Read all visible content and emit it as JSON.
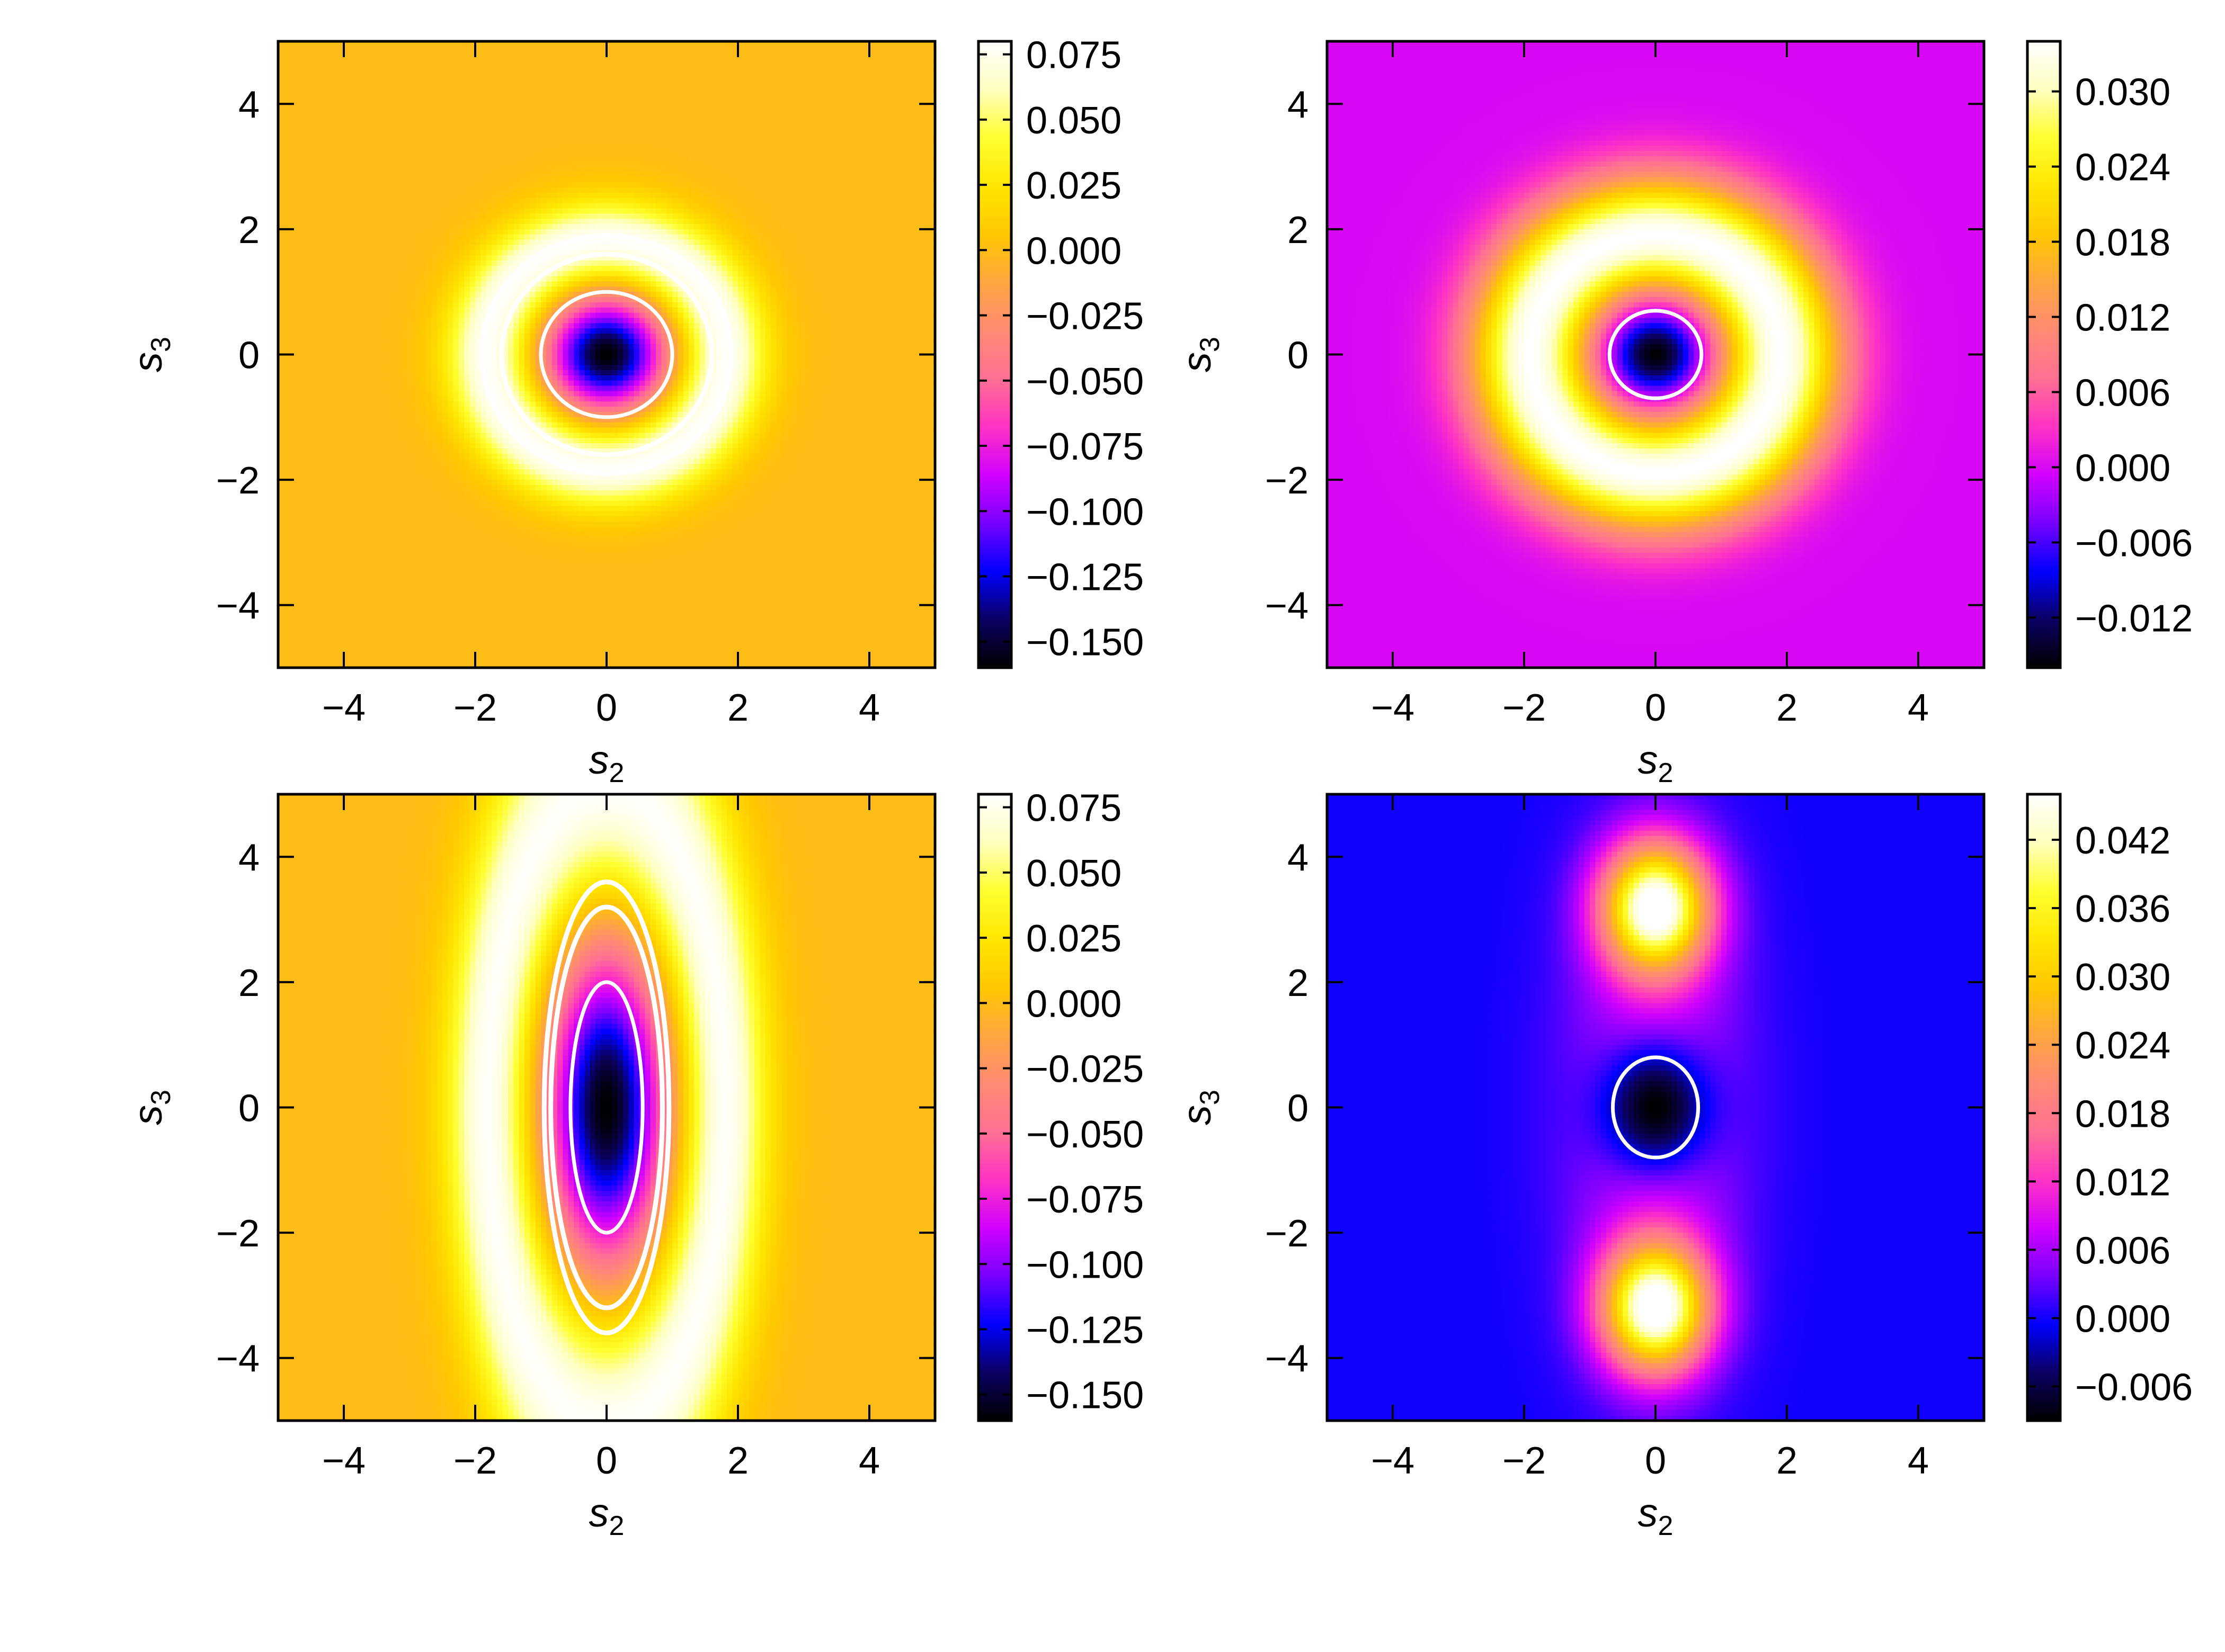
{
  "chart_data": [
    {
      "type": "heatmap",
      "xlabel_base": "s",
      "xlabel_sub": "2",
      "ylabel_base": "s",
      "ylabel_sub": "3",
      "xlim": [
        -5,
        5
      ],
      "ylim": [
        -5,
        5
      ],
      "xticks": [
        "−4",
        "−2",
        "0",
        "2",
        "4"
      ],
      "yticks": [
        "−4",
        "−2",
        "0",
        "2",
        "4"
      ],
      "shape": "ring",
      "field": {
        "center_value": -0.16,
        "ring_peak": 0.08,
        "ring_radius": 1.8,
        "ring_width": 0.65,
        "core_radius": 0.55,
        "background": 0.0,
        "sx": 1.0,
        "sy": 1.0
      },
      "contours": [
        {
          "rx": 1.0,
          "ry": 1.0
        },
        {
          "rx": 1.6,
          "ry": 1.6
        },
        {
          "rx": 1.9,
          "ry": 1.9
        }
      ],
      "colorbar": {
        "range": [
          -0.16,
          0.08
        ],
        "ticks": [
          0.075,
          0.05,
          0.025,
          0.0,
          -0.025,
          -0.05,
          -0.075,
          -0.1,
          -0.125,
          -0.15
        ],
        "tick_labels": [
          "0.075",
          "0.050",
          "0.025",
          "0.000",
          "−0.025",
          "−0.050",
          "−0.075",
          "−0.100",
          "−0.125",
          "−0.150"
        ]
      }
    },
    {
      "type": "heatmap",
      "xlabel_base": "s",
      "xlabel_sub": "2",
      "ylabel_base": "s",
      "ylabel_sub": "3",
      "xlim": [
        -5,
        5
      ],
      "ylim": [
        -5,
        5
      ],
      "xticks": [
        "−4",
        "−2",
        "0",
        "2",
        "4"
      ],
      "yticks": [
        "−4",
        "−2",
        "0",
        "2",
        "4"
      ],
      "shape": "ring",
      "field": {
        "center_value": -0.016,
        "ring_peak": 0.034,
        "ring_radius": 1.9,
        "ring_width": 0.95,
        "core_radius": 0.45,
        "background": 0.0,
        "sx": 1.0,
        "sy": 1.0
      },
      "contours": [
        {
          "rx": 0.7,
          "ry": 0.7
        }
      ],
      "colorbar": {
        "range": [
          -0.016,
          0.034
        ],
        "ticks": [
          0.03,
          0.024,
          0.018,
          0.012,
          0.006,
          0.0,
          -0.006,
          -0.012
        ],
        "tick_labels": [
          "0.030",
          "0.024",
          "0.018",
          "0.012",
          "0.006",
          "0.000",
          "−0.006",
          "−0.012"
        ]
      }
    },
    {
      "type": "heatmap",
      "xlabel_base": "s",
      "xlabel_sub": "2",
      "ylabel_base": "s",
      "ylabel_sub": "3",
      "xlim": [
        -5,
        5
      ],
      "ylim": [
        -5,
        5
      ],
      "xticks": [
        "−4",
        "−2",
        "0",
        "2",
        "4"
      ],
      "yticks": [
        "−4",
        "−2",
        "0",
        "2",
        "4"
      ],
      "shape": "ellipse-ring",
      "field": {
        "center_value": -0.16,
        "ring_peak": 0.08,
        "ring_radius": 1.8,
        "ring_width": 0.65,
        "core_radius": 0.55,
        "background": 0.0,
        "sx": 2.8,
        "sy": 1.0
      },
      "contours": [
        {
          "rx": 0.55,
          "ry": 2.0
        },
        {
          "rx": 0.85,
          "ry": 3.2
        },
        {
          "rx": 0.95,
          "ry": 3.6
        }
      ],
      "colorbar": {
        "range": [
          -0.16,
          0.08
        ],
        "ticks": [
          0.075,
          0.05,
          0.025,
          0.0,
          -0.025,
          -0.05,
          -0.075,
          -0.1,
          -0.125,
          -0.15
        ],
        "tick_labels": [
          "0.075",
          "0.050",
          "0.025",
          "0.000",
          "−0.025",
          "−0.050",
          "−0.075",
          "−0.100",
          "−0.125",
          "−0.150"
        ]
      }
    },
    {
      "type": "heatmap",
      "xlabel_base": "s",
      "xlabel_sub": "2",
      "ylabel_base": "s",
      "ylabel_sub": "3",
      "xlim": [
        -5,
        5
      ],
      "ylim": [
        -5,
        5
      ],
      "xticks": [
        "−4",
        "−2",
        "0",
        "2",
        "4"
      ],
      "yticks": [
        "−4",
        "−2",
        "0",
        "2",
        "4"
      ],
      "shape": "lobes",
      "field": {
        "center_value": -0.009,
        "lobe_peak": 0.046,
        "lobe_y": 3.2,
        "lobe_sx": 0.8,
        "lobe_sy": 1.0,
        "halo": 0.01,
        "background": 0.0
      },
      "contours": [
        {
          "rx": 0.65,
          "ry": 0.8
        }
      ],
      "colorbar": {
        "range": [
          -0.009,
          0.046
        ],
        "ticks": [
          0.042,
          0.036,
          0.03,
          0.024,
          0.018,
          0.012,
          0.006,
          0.0,
          -0.006
        ],
        "tick_labels": [
          "0.042",
          "0.036",
          "0.030",
          "0.024",
          "0.018",
          "0.012",
          "0.006",
          "0.000",
          "−0.006"
        ]
      }
    }
  ],
  "colormap": [
    "#000000",
    "#0a0063",
    "#0000ff",
    "#7800ff",
    "#d100ff",
    "#ff33c4",
    "#ff7094",
    "#ff8a74",
    "#ffa640",
    "#ffc800",
    "#ffe600",
    "#ffff30",
    "#ffffc0",
    "#ffffff"
  ],
  "colors": {
    "contour": "#ffffff",
    "axes": "#000000"
  }
}
